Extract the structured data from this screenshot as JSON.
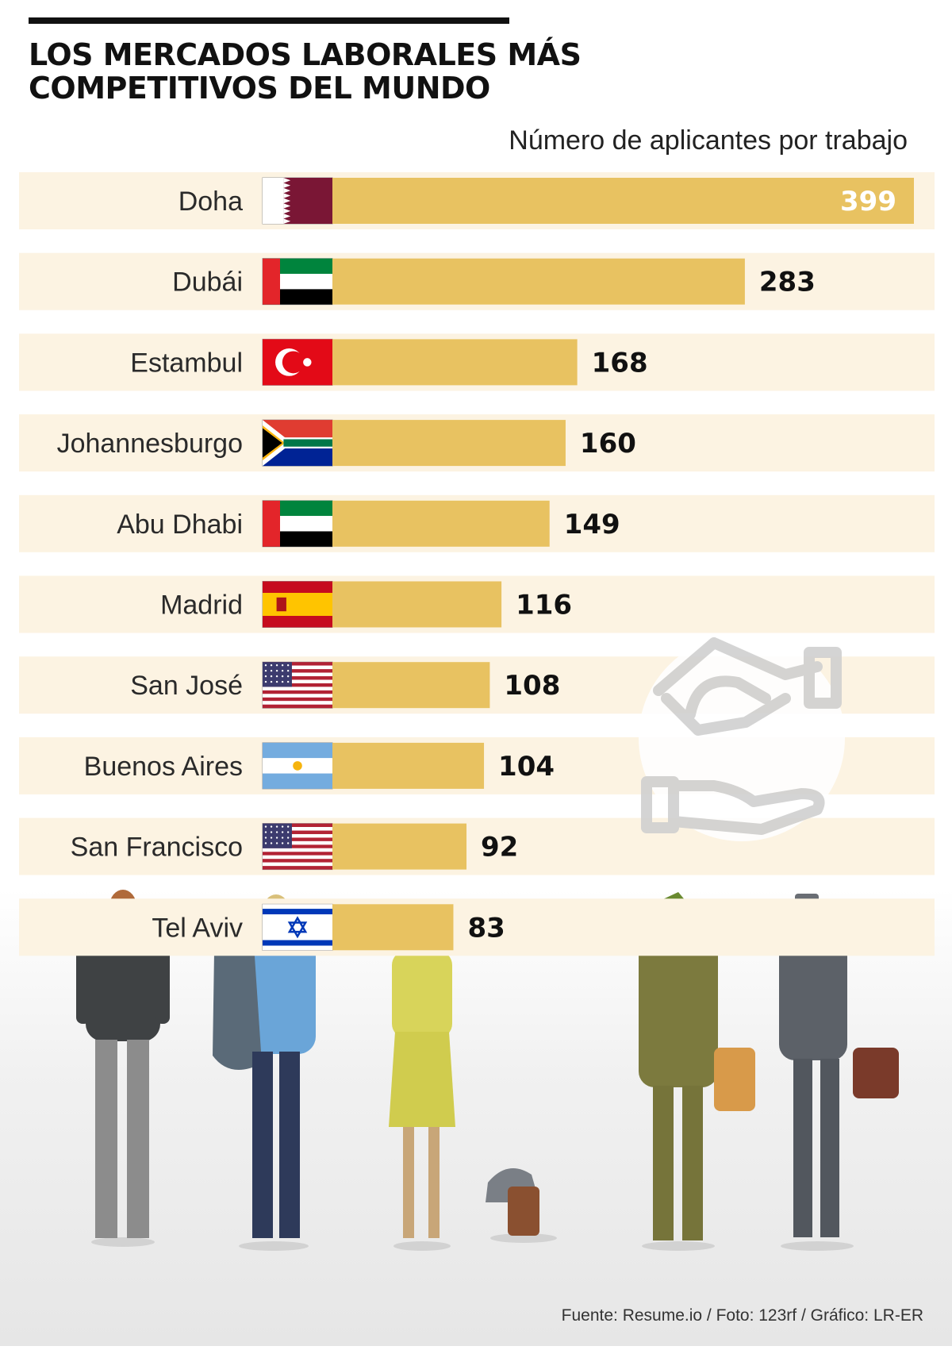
{
  "header": {
    "title_line1": "LOS MERCADOS LABORALES MÁS",
    "title_line2": "COMPETITIVOS DEL MUNDO",
    "subtitle": "Número de aplicantes por trabajo"
  },
  "footer": {
    "source": "Fuente: Resume.io / Foto: 123rf / Gráfico: LR-ER"
  },
  "colors": {
    "bar": "#e8c261",
    "row_bg": "#fcf3e2",
    "value_text": "#111111",
    "value_text_inside": "#ffffff"
  },
  "chart_data": {
    "type": "bar",
    "orientation": "horizontal",
    "title": "LOS MERCADOS LABORALES MÁS COMPETITIVOS DEL MUNDO",
    "subtitle": "Número de aplicantes por trabajo",
    "categories": [
      "Doha",
      "Dubái",
      "Estambul",
      "Johannesburgo",
      "Abu Dhabi",
      "Madrid",
      "San José",
      "Buenos Aires",
      "San Francisco",
      "Tel Aviv"
    ],
    "values": [
      399,
      283,
      168,
      160,
      149,
      116,
      108,
      104,
      92,
      83
    ],
    "flags": [
      "qatar-flag",
      "uae-flag",
      "turkey-flag",
      "south-africa-flag",
      "uae-flag",
      "spain-flag",
      "usa-flag",
      "argentina-flag",
      "usa-flag",
      "israel-flag"
    ],
    "xlim": [
      0,
      399
    ],
    "grid": false,
    "legend": "none"
  }
}
